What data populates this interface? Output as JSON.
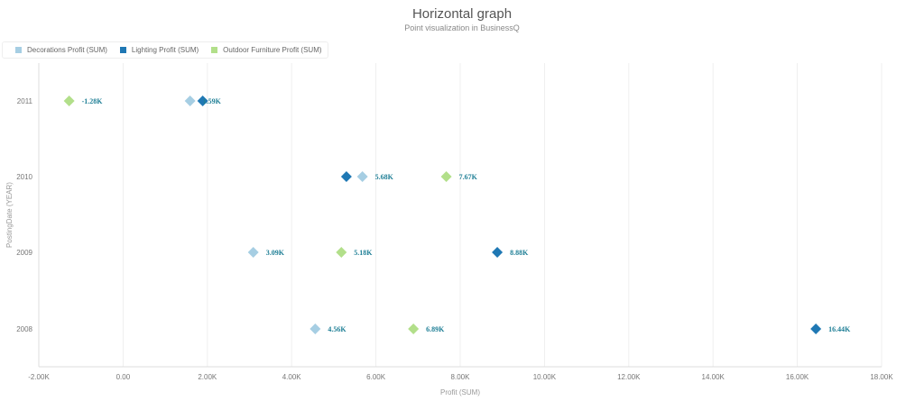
{
  "chart_data": {
    "type": "scatter",
    "orientation": "horizontal",
    "title": "Horizontal graph",
    "subtitle": "Point visualization in BusinessQ",
    "xlabel": "Profit (SUM)",
    "ylabel": "PostingDate (YEAR)",
    "xlim": [
      -2000,
      18000
    ],
    "x_ticks": [
      "-2.00K",
      "0.00",
      "2.00K",
      "4.00K",
      "6.00K",
      "8.00K",
      "10.00K",
      "12.00K",
      "14.00K",
      "16.00K",
      "18.00K"
    ],
    "categories": [
      "2011",
      "2010",
      "2009",
      "2008"
    ],
    "grid": true,
    "legend_position": "top-left",
    "marker": "diamond",
    "series": [
      {
        "name": "Decorations Profit (SUM)",
        "color": "#a6cee3",
        "values": [
          1590,
          5680,
          3090,
          4560
        ],
        "labels": [
          "1.59K",
          "5.68K",
          "3.09K",
          "4.56K"
        ]
      },
      {
        "name": "Lighting Profit (SUM)",
        "color": "#1f78b4",
        "values": [
          1890,
          5300,
          8880,
          16440
        ],
        "labels": [
          "",
          "",
          "8.88K",
          "16.44K"
        ]
      },
      {
        "name": "Outdoor Furniture Profit (SUM)",
        "color": "#b2df8a",
        "values": [
          -1280,
          7670,
          5180,
          6890
        ],
        "labels": [
          "-1.28K",
          "7.67K",
          "5.18K",
          "6.89K"
        ]
      }
    ]
  }
}
